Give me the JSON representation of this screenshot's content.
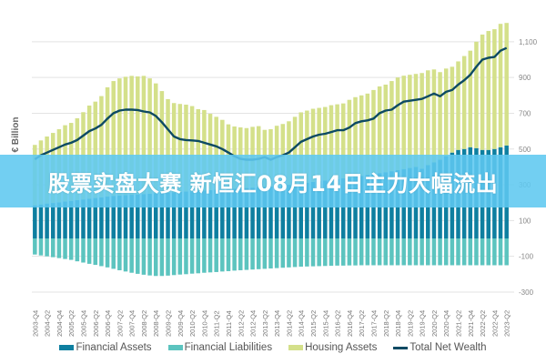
{
  "banner": {
    "text": "股票实盘大赛 新恒汇08月14日主力大幅流出"
  },
  "chart_data": {
    "type": "bar",
    "stacked": true,
    "ylabel": "€ Billion",
    "ylim": [
      -300,
      1200
    ],
    "yticks": [
      1100,
      900,
      700,
      500,
      300,
      100,
      -100,
      -300
    ],
    "ytick_labels": [
      "1,100",
      "900",
      "700",
      "500",
      "300",
      "100",
      "-100",
      "-300"
    ],
    "grid": true,
    "legend_position": "bottom",
    "categories": [
      "2003-Q4",
      "2004-Q1",
      "2004-Q2",
      "2004-Q3",
      "2004-Q4",
      "2005-Q1",
      "2005-Q2",
      "2005-Q3",
      "2005-Q4",
      "2006-Q1",
      "2006-Q2",
      "2006-Q3",
      "2006-Q4",
      "2007-Q1",
      "2007-Q2",
      "2007-Q3",
      "2007-Q4",
      "2008-Q1",
      "2008-Q2",
      "2008-Q3",
      "2008-Q4",
      "2009-Q1",
      "2009-Q2",
      "2009-Q3",
      "2009-Q4",
      "2010-Q1",
      "2010-Q2",
      "2010-Q3",
      "2010-Q4",
      "2011-Q1",
      "2011-Q2",
      "2011-Q3",
      "2011-Q4",
      "2012-Q1",
      "2012-Q2",
      "2012-Q3",
      "2012-Q4",
      "2013-Q1",
      "2013-Q2",
      "2013-Q3",
      "2013-Q4",
      "2014-Q1",
      "2014-Q2",
      "2014-Q3",
      "2014-Q4",
      "2015-Q1",
      "2015-Q2",
      "2015-Q3",
      "2015-Q4",
      "2016-Q1",
      "2016-Q2",
      "2016-Q3",
      "2016-Q4",
      "2017-Q1",
      "2017-Q2",
      "2017-Q3",
      "2017-Q4",
      "2018-Q1",
      "2018-Q2",
      "2018-Q3",
      "2018-Q4",
      "2019-Q1",
      "2019-Q2",
      "2019-Q3",
      "2019-Q4",
      "2020-Q1",
      "2020-Q2",
      "2020-Q3",
      "2020-Q4",
      "2021-Q1",
      "2021-Q2",
      "2021-Q3",
      "2021-Q4",
      "2022-Q1",
      "2022-Q2",
      "2022-Q3",
      "2022-Q4",
      "2023-Q1",
      "2023-Q2"
    ],
    "series": [
      {
        "name": "Financial Assets",
        "kind": "bar",
        "color": "#0e7fa0",
        "values": [
          185,
          190,
          195,
          198,
          202,
          206,
          210,
          214,
          218,
          222,
          226,
          230,
          234,
          238,
          240,
          242,
          244,
          246,
          248,
          250,
          252,
          254,
          256,
          258,
          260,
          262,
          264,
          266,
          268,
          270,
          272,
          274,
          276,
          278,
          280,
          282,
          284,
          286,
          288,
          290,
          293,
          296,
          300,
          304,
          308,
          312,
          316,
          320,
          324,
          328,
          332,
          336,
          340,
          345,
          350,
          355,
          360,
          365,
          370,
          376,
          382,
          388,
          394,
          400,
          390,
          410,
          425,
          440,
          460,
          480,
          495,
          500,
          510,
          505,
          495,
          495,
          500,
          510,
          520
        ]
      },
      {
        "name": "Financial Liabilities",
        "kind": "bar",
        "color": "#5cc4bf",
        "values": [
          -90,
          -95,
          -100,
          -105,
          -110,
          -115,
          -120,
          -128,
          -135,
          -142,
          -148,
          -155,
          -162,
          -170,
          -178,
          -185,
          -192,
          -198,
          -203,
          -207,
          -210,
          -210,
          -208,
          -205,
          -202,
          -200,
          -197,
          -195,
          -192,
          -190,
          -188,
          -185,
          -183,
          -180,
          -178,
          -176,
          -174,
          -172,
          -170,
          -168,
          -166,
          -164,
          -162,
          -160,
          -158,
          -157,
          -156,
          -155,
          -154,
          -153,
          -152,
          -152,
          -151,
          -151,
          -150,
          -150,
          -150,
          -150,
          -150,
          -150,
          -150,
          -150,
          -150,
          -150,
          -150,
          -150,
          -150,
          -150,
          -150,
          -150,
          -150,
          -150,
          -150,
          -150,
          -150,
          -150,
          -150,
          -150,
          -150
        ]
      },
      {
        "name": "Housing Assets",
        "kind": "bar",
        "color": "#d4e08a",
        "values": [
          338,
          358,
          375,
          392,
          409,
          427,
          436,
          458,
          488,
          521,
          539,
          566,
          611,
          642,
          655,
          662,
          665,
          660,
          661,
          645,
          615,
          570,
          523,
          499,
          492,
          486,
          476,
          457,
          450,
          427,
          408,
          389,
          362,
          348,
          341,
          335,
          340,
          342,
          319,
          321,
          337,
          344,
          355,
          376,
          397,
          403,
          409,
          410,
          411,
          417,
          418,
          419,
          435,
          445,
          450,
          455,
          470,
          485,
          490,
          504,
          518,
          522,
          521,
          520,
          535,
          530,
          520,
          490,
          490,
          480,
          495,
          520,
          540,
          595,
          645,
          665,
          670,
          690,
          685
        ]
      },
      {
        "name": "Total Net Wealth",
        "kind": "line",
        "color": "#0d4a63",
        "values": [
          443,
          465,
          480,
          495,
          510,
          525,
          535,
          550,
          575,
          600,
          615,
          635,
          670,
          700,
          715,
          720,
          720,
          718,
          710,
          705,
          685,
          650,
          610,
          570,
          555,
          550,
          548,
          545,
          535,
          525,
          515,
          500,
          480,
          460,
          445,
          440,
          440,
          445,
          455,
          440,
          455,
          465,
          480,
          510,
          540,
          555,
          570,
          580,
          585,
          595,
          605,
          605,
          620,
          645,
          655,
          660,
          670,
          700,
          715,
          720,
          745,
          765,
          770,
          775,
          780,
          795,
          810,
          795,
          820,
          830,
          860,
          885,
          915,
          960,
          1000,
          1010,
          1015,
          1050,
          1065
        ]
      }
    ]
  }
}
